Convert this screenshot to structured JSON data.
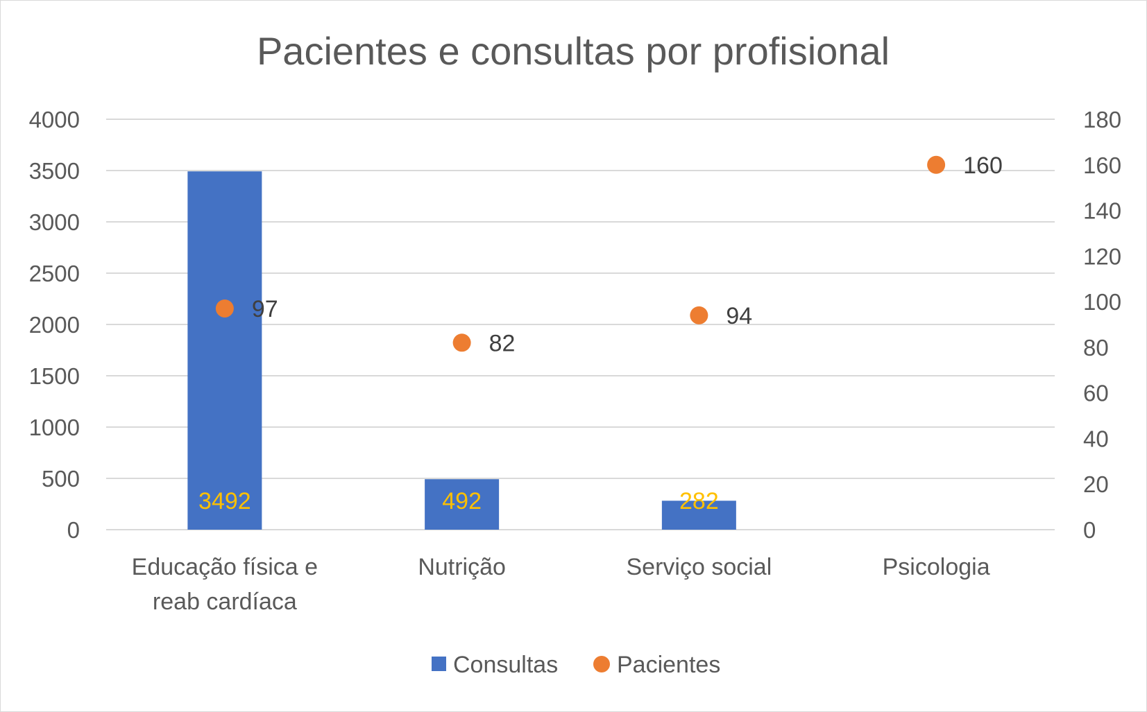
{
  "chart_data": {
    "type": "bar",
    "title": "Pacientes e consultas por profisional",
    "categories": [
      [
        "Educação física e",
        "reab cardíaca"
      ],
      [
        "Nutrição"
      ],
      [
        "Serviço social"
      ],
      [
        "Psicologia"
      ]
    ],
    "series": [
      {
        "name": "Consultas",
        "type": "bar",
        "axis": "primary",
        "color": "#4472c4",
        "label_color": "#ffc000",
        "values": [
          3492,
          492,
          282,
          null
        ]
      },
      {
        "name": "Pacientes",
        "type": "scatter",
        "axis": "secondary",
        "color": "#ed7d31",
        "values": [
          97,
          82,
          94,
          160
        ]
      }
    ],
    "y_primary": {
      "min": 0,
      "max": 4000,
      "step": 500,
      "ticks": [
        "0",
        "500",
        "1000",
        "1500",
        "2000",
        "2500",
        "3000",
        "3500",
        "4000"
      ]
    },
    "y_secondary": {
      "min": 0,
      "max": 180,
      "step": 20,
      "ticks": [
        "0",
        "20",
        "40",
        "60",
        "80",
        "100",
        "120",
        "140",
        "160",
        "180"
      ]
    },
    "grid": true,
    "legend_position": "bottom"
  }
}
